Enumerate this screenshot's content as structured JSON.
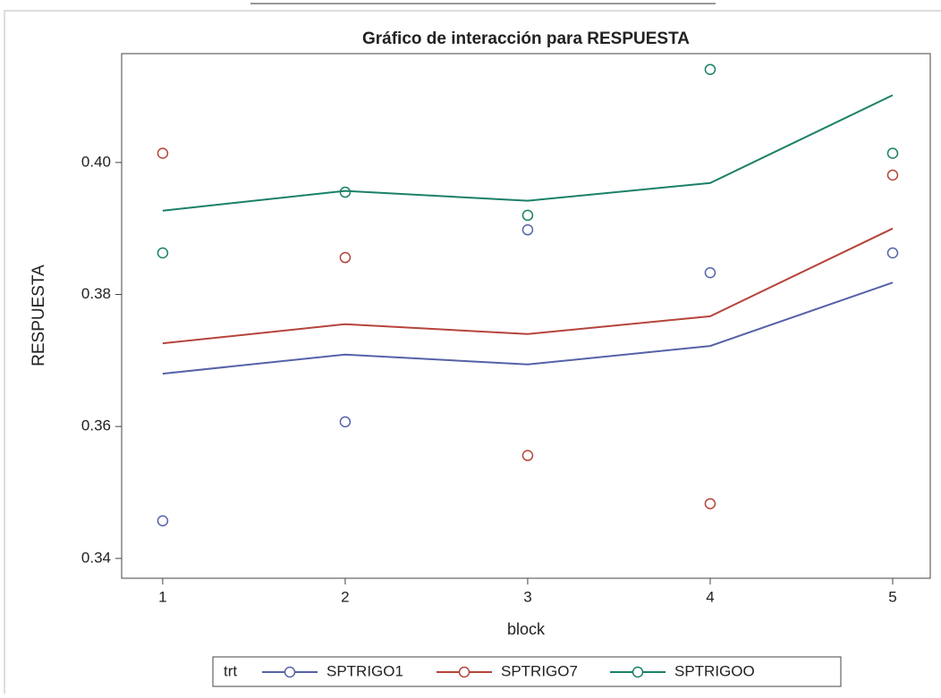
{
  "chart_data": {
    "type": "line",
    "title": "Gráfico de interacción para RESPUESTA",
    "xlabel": "block",
    "ylabel": "RESPUESTA",
    "x": [
      1,
      2,
      3,
      4,
      5
    ],
    "xlim": [
      0.775,
      5.206
    ],
    "xticks": [
      1,
      2,
      3,
      4,
      5
    ],
    "ylim": [
      0.337,
      0.4165
    ],
    "yticks": [
      0.34,
      0.36,
      0.38,
      {
        "value": 0.4,
        "label": "0.40"
      }
    ],
    "legend_title": "trt",
    "legend": "bottom",
    "series": [
      {
        "name": "SPTRIGO1",
        "color": "#5562a8",
        "values": [
          0.368,
          0.3709,
          0.3694,
          0.3722,
          0.3818
        ],
        "observed": [
          0.3457,
          0.3607,
          0.3898,
          0.3833,
          0.3863
        ]
      },
      {
        "name": "SPTRIGO7",
        "color": "#b5443b",
        "values": [
          0.3726,
          0.3755,
          0.374,
          0.3767,
          0.39
        ],
        "observed": [
          0.4014,
          0.3856,
          0.3556,
          0.3483,
          0.3981
        ]
      },
      {
        "name": "SPTRIGOO",
        "color": "#1a8068",
        "values": [
          0.3927,
          0.3957,
          0.3942,
          0.3969,
          0.4102
        ],
        "observed": [
          0.3863,
          0.3955,
          0.392,
          0.4141,
          0.4014
        ]
      }
    ]
  }
}
